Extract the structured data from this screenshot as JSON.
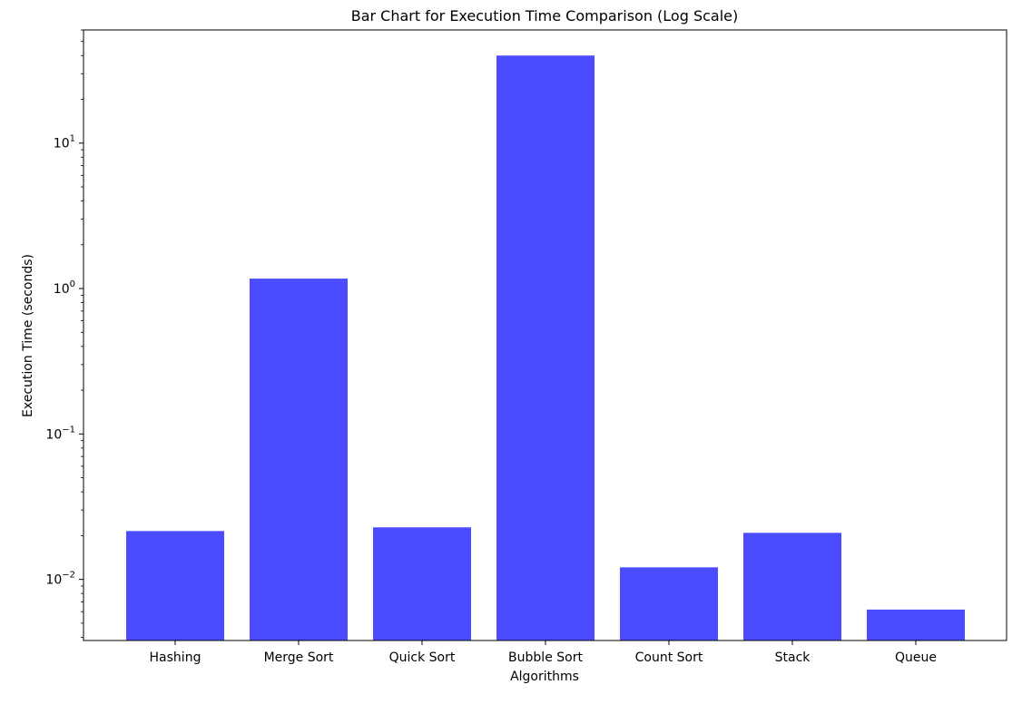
{
  "chart_data": {
    "type": "bar",
    "title": "Bar Chart for Execution Time Comparison (Log Scale)",
    "xlabel": "Algorithms",
    "ylabel": "Execution Time (seconds)",
    "categories": [
      "Hashing",
      "Merge Sort",
      "Quick Sort",
      "Bubble Sort",
      "Count Sort",
      "Stack",
      "Queue"
    ],
    "values": [
      0.0215,
      1.17,
      0.0228,
      40.0,
      0.0121,
      0.0209,
      0.0062
    ],
    "y_scale": "log",
    "ylim": [
      0.0038,
      60
    ],
    "y_ticks": [
      {
        "value": 0.01,
        "base": "10",
        "exp": "−2"
      },
      {
        "value": 0.1,
        "base": "10",
        "exp": "−1"
      },
      {
        "value": 1,
        "base": "10",
        "exp": "0"
      },
      {
        "value": 10,
        "base": "10",
        "exp": "1"
      }
    ],
    "bar_color": "#4b4bff",
    "grid": false,
    "legend": "none"
  }
}
